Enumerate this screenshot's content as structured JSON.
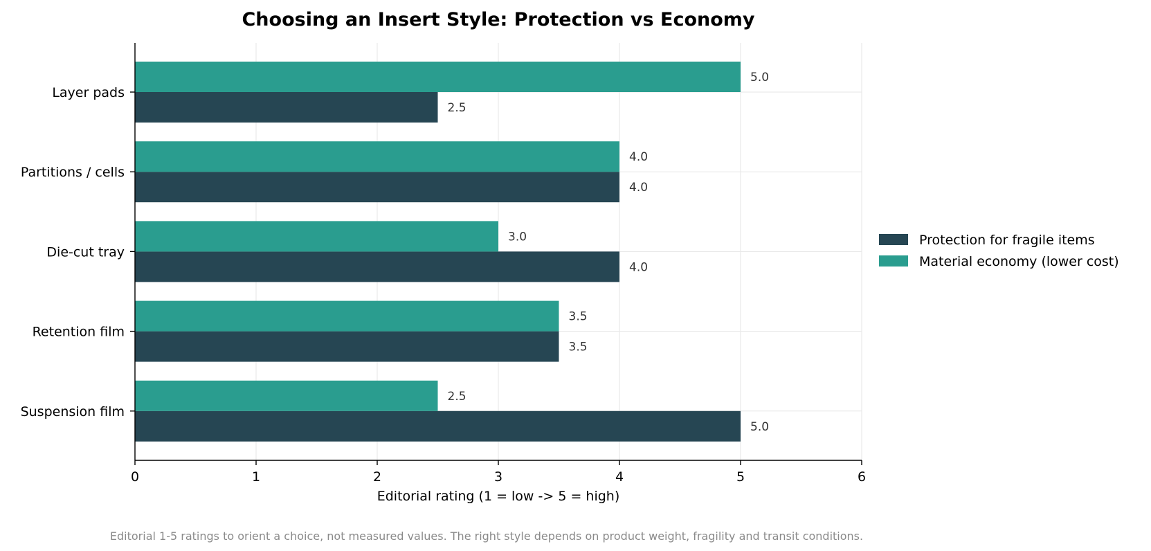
{
  "chart_data": {
    "type": "bar",
    "orientation": "horizontal",
    "title": "Choosing an Insert Style: Protection vs Economy",
    "xlabel": "Editorial rating  (1 = low  ->  5 = high)",
    "ylabel": "",
    "xlim": [
      0,
      6
    ],
    "xticks": [
      "0",
      "1",
      "2",
      "3",
      "4",
      "5",
      "6"
    ],
    "categories": [
      "Layer pads",
      "Partitions / cells",
      "Die-cut tray",
      "Retention film",
      "Suspension film"
    ],
    "series": [
      {
        "name": "Protection for fragile items",
        "color": "#264653",
        "values": [
          2.5,
          4.0,
          4.0,
          3.5,
          5.0
        ]
      },
      {
        "name": "Material economy (lower cost)",
        "color": "#2a9d8f",
        "values": [
          5.0,
          4.0,
          3.0,
          3.5,
          2.5
        ]
      }
    ],
    "grid": true,
    "legend_position": "right",
    "footnote": "Editorial 1-5 ratings to orient a choice, not measured values. The right style depends on product weight, fragility and transit conditions."
  }
}
